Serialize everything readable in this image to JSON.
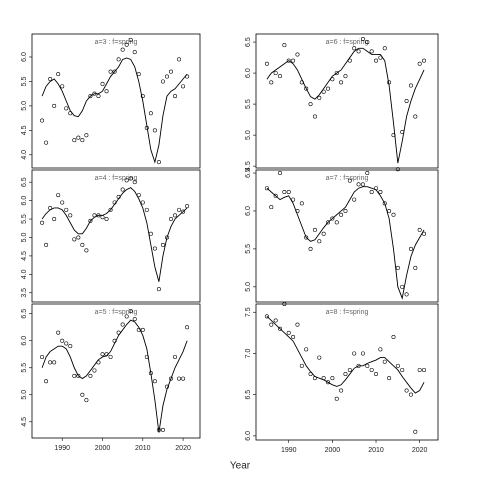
{
  "x_label": "Year",
  "chart_data": [
    {
      "type": "scatter",
      "title": "a=3 : f=spring",
      "x": [
        1985,
        1986,
        1987,
        1988,
        1989,
        1990,
        1991,
        1992,
        1993,
        1994,
        1995,
        1996,
        1997,
        1998,
        1999,
        2000,
        2001,
        2002,
        2003,
        2004,
        2005,
        2006,
        2007,
        2008,
        2009,
        2010,
        2011,
        2012,
        2013,
        2014,
        2015,
        2016,
        2017,
        2018,
        2019,
        2020,
        2021
      ],
      "values": [
        4.7,
        4.25,
        5.55,
        5.0,
        5.65,
        5.4,
        4.95,
        4.85,
        4.3,
        4.35,
        4.3,
        4.4,
        5.2,
        5.25,
        5.2,
        5.45,
        5.3,
        5.7,
        5.7,
        5.95,
        6.15,
        6.25,
        6.35,
        6.1,
        5.65,
        5.2,
        4.55,
        4.85,
        4.5,
        3.85,
        5.5,
        5.6,
        5.7,
        5.2,
        5.95,
        5.4,
        5.6
      ],
      "line_values": [
        5.2,
        5.4,
        5.5,
        5.55,
        5.45,
        5.3,
        5.1,
        4.9,
        4.8,
        4.78,
        4.9,
        5.1,
        5.2,
        5.25,
        5.25,
        5.3,
        5.45,
        5.6,
        5.7,
        5.8,
        5.95,
        5.98,
        5.95,
        5.8,
        5.5,
        5.1,
        4.6,
        4.1,
        3.85,
        4.2,
        4.8,
        5.2,
        5.3,
        5.35,
        5.45,
        5.55,
        5.65
      ],
      "color": "#000000",
      "xlim": [
        1982.5,
        2024.2
      ],
      "ylim": [
        3.73,
        6.47
      ],
      "yticks": [
        {
          "value": 4,
          "label": "4.0"
        },
        4.5,
        {
          "value": 5,
          "label": "5.0"
        },
        5.5,
        {
          "value": 6,
          "label": "6.0"
        }
      ]
    },
    {
      "type": "scatter",
      "title": "a=4 : f=spring",
      "x": [
        1985,
        1986,
        1987,
        1988,
        1989,
        1990,
        1991,
        1992,
        1993,
        1994,
        1995,
        1996,
        1997,
        1998,
        1999,
        2000,
        2001,
        2002,
        2003,
        2004,
        2005,
        2006,
        2007,
        2008,
        2009,
        2010,
        2011,
        2012,
        2013,
        2014,
        2015,
        2016,
        2017,
        2018,
        2019,
        2020,
        2021
      ],
      "values": [
        5.4,
        4.8,
        5.8,
        5.5,
        6.15,
        5.95,
        5.75,
        5.6,
        4.95,
        5.0,
        4.8,
        4.65,
        5.45,
        5.6,
        5.6,
        5.55,
        5.5,
        5.75,
        5.95,
        6.1,
        6.3,
        6.55,
        6.6,
        6.5,
        6.15,
        5.95,
        5.75,
        5.1,
        4.7,
        3.6,
        4.8,
        5.0,
        5.5,
        5.6,
        5.75,
        5.7,
        5.85
      ],
      "line_values": [
        5.5,
        5.65,
        5.75,
        5.8,
        5.8,
        5.75,
        5.6,
        5.4,
        5.2,
        5.1,
        5.1,
        5.25,
        5.45,
        5.55,
        5.6,
        5.6,
        5.65,
        5.75,
        5.9,
        6.05,
        6.2,
        6.3,
        6.35,
        6.25,
        6.05,
        5.8,
        5.4,
        4.8,
        4.2,
        3.8,
        4.5,
        5.0,
        5.3,
        5.5,
        5.6,
        5.7,
        5.8
      ],
      "color": "#000000",
      "xlim": [
        1982.5,
        2024.2
      ],
      "ylim": [
        3.25,
        6.83
      ],
      "yticks": [
        3.5,
        {
          "value": 4,
          "label": "4.0"
        },
        4.5,
        {
          "value": 5,
          "label": "5.0"
        },
        5.5,
        {
          "value": 6,
          "label": "6.0"
        },
        6.5
      ]
    },
    {
      "type": "scatter",
      "title": "a=5 : f=spring",
      "x": [
        1985,
        1986,
        1987,
        1988,
        1989,
        1990,
        1991,
        1992,
        1993,
        1994,
        1995,
        1996,
        1997,
        1998,
        1999,
        2000,
        2001,
        2002,
        2003,
        2004,
        2005,
        2006,
        2007,
        2008,
        2009,
        2010,
        2011,
        2012,
        2013,
        2014,
        2015,
        2016,
        2017,
        2018,
        2019,
        2020,
        2021
      ],
      "values": [
        5.7,
        5.25,
        5.6,
        5.6,
        6.15,
        6.0,
        5.95,
        5.9,
        5.35,
        5.35,
        5.0,
        4.9,
        5.35,
        5.45,
        5.6,
        5.75,
        5.75,
        5.7,
        6.0,
        6.15,
        6.3,
        6.45,
        6.55,
        6.4,
        6.2,
        6.2,
        5.7,
        5.4,
        5.25,
        4.35,
        4.35,
        5.15,
        5.3,
        5.7,
        5.3,
        5.3,
        6.25
      ],
      "line_values": [
        5.5,
        5.7,
        5.8,
        5.85,
        5.9,
        5.9,
        5.85,
        5.7,
        5.5,
        5.35,
        5.3,
        5.35,
        5.45,
        5.55,
        5.65,
        5.7,
        5.72,
        5.8,
        5.95,
        6.1,
        6.2,
        6.3,
        6.38,
        6.35,
        6.25,
        6.1,
        5.85,
        5.4,
        4.9,
        4.3,
        4.8,
        5.1,
        5.3,
        5.5,
        5.65,
        5.8,
        6.0
      ],
      "color": "#000000",
      "xlim": [
        1982.5,
        2024.2
      ],
      "ylim": [
        4.2,
        6.68
      ],
      "xticks": [
        1990,
        2000,
        2010,
        2020
      ],
      "yticks": [
        4.5,
        {
          "value": 5,
          "label": "5.0"
        },
        5.5,
        {
          "value": 6,
          "label": "6.0"
        },
        6.5
      ]
    },
    {
      "type": "scatter",
      "title": "a=6 : f=spring",
      "x": [
        1985,
        1986,
        1987,
        1988,
        1989,
        1990,
        1991,
        1992,
        1993,
        1994,
        1995,
        1996,
        1997,
        1998,
        1999,
        2000,
        2001,
        2002,
        2003,
        2004,
        2005,
        2006,
        2007,
        2008,
        2009,
        2010,
        2011,
        2012,
        2013,
        2014,
        2015,
        2016,
        2017,
        2018,
        2019,
        2020,
        2021
      ],
      "values": [
        6.15,
        5.85,
        6.0,
        5.95,
        6.45,
        6.2,
        6.2,
        6.3,
        5.85,
        5.75,
        5.5,
        5.3,
        5.6,
        5.7,
        5.75,
        5.9,
        6.0,
        5.85,
        5.95,
        6.2,
        6.4,
        6.35,
        6.55,
        6.5,
        6.35,
        6.2,
        6.25,
        6.4,
        5.85,
        5.0,
        4.45,
        5.05,
        5.55,
        5.8,
        5.3,
        6.15,
        6.2
      ],
      "line_values": [
        5.9,
        6.0,
        6.05,
        6.1,
        6.15,
        6.2,
        6.15,
        6.05,
        5.9,
        5.75,
        5.62,
        5.58,
        5.65,
        5.75,
        5.85,
        5.95,
        6.0,
        6.05,
        6.15,
        6.25,
        6.35,
        6.4,
        6.4,
        6.35,
        6.3,
        6.3,
        6.3,
        6.2,
        5.8,
        5.2,
        4.55,
        4.9,
        5.3,
        5.55,
        5.75,
        5.9,
        6.05
      ],
      "color": "#000000",
      "xlim": [
        1982.5,
        2024.2
      ],
      "ylim": [
        4.47,
        6.63
      ],
      "yticks": [
        4.5,
        {
          "value": 5,
          "label": "5.0"
        },
        5.5,
        {
          "value": 6,
          "label": "6.0"
        },
        6.5
      ]
    },
    {
      "type": "scatter",
      "title": "a=7 : f=spring",
      "x": [
        1985,
        1986,
        1987,
        1988,
        1989,
        1990,
        1991,
        1992,
        1993,
        1994,
        1995,
        1996,
        1997,
        1998,
        1999,
        2000,
        2001,
        2002,
        2003,
        2004,
        2005,
        2006,
        2007,
        2008,
        2009,
        2010,
        2011,
        2012,
        2013,
        2014,
        2015,
        2016,
        2017,
        2018,
        2019,
        2020,
        2021
      ],
      "values": [
        6.3,
        6.05,
        6.2,
        6.5,
        6.25,
        6.25,
        6.15,
        6.0,
        6.1,
        5.65,
        5.5,
        5.75,
        5.6,
        5.7,
        5.85,
        5.9,
        5.85,
        5.95,
        6.0,
        6.4,
        6.15,
        6.35,
        6.35,
        6.5,
        6.25,
        6.3,
        6.25,
        6.1,
        6.0,
        5.95,
        5.25,
        5.0,
        4.9,
        5.5,
        5.25,
        5.75,
        5.7
      ],
      "line_values": [
        6.3,
        6.25,
        6.2,
        6.15,
        6.18,
        6.2,
        6.1,
        5.95,
        5.8,
        5.65,
        5.6,
        5.62,
        5.7,
        5.78,
        5.85,
        5.9,
        5.95,
        6.0,
        6.05,
        6.15,
        6.25,
        6.3,
        6.32,
        6.32,
        6.3,
        6.28,
        6.2,
        6.1,
        5.9,
        5.5,
        5.0,
        4.85,
        5.15,
        5.4,
        5.55,
        5.65,
        5.75
      ],
      "color": "#000000",
      "xlim": [
        1982.5,
        2024.2
      ],
      "ylim": [
        4.8,
        6.54
      ],
      "yticks": [
        {
          "value": 5,
          "label": "5.0"
        },
        5.5,
        {
          "value": 6,
          "label": "6.0"
        },
        6.5
      ]
    },
    {
      "type": "scatter",
      "title": "a=8 : f=spring",
      "x": [
        1985,
        1986,
        1987,
        1988,
        1989,
        1990,
        1991,
        1992,
        1993,
        1994,
        1995,
        1996,
        1997,
        1998,
        1999,
        2000,
        2001,
        2002,
        2003,
        2004,
        2005,
        2006,
        2007,
        2008,
        2009,
        2010,
        2011,
        2012,
        2013,
        2014,
        2015,
        2016,
        2017,
        2018,
        2019,
        2020,
        2021
      ],
      "values": [
        7.45,
        7.35,
        7.4,
        7.3,
        7.6,
        7.25,
        7.2,
        7.35,
        6.85,
        7.05,
        6.75,
        6.7,
        6.95,
        6.7,
        6.65,
        6.7,
        6.45,
        6.55,
        6.75,
        6.8,
        7.0,
        6.85,
        7.0,
        6.85,
        6.8,
        6.75,
        7.05,
        6.9,
        6.7,
        7.2,
        6.85,
        6.8,
        6.55,
        6.5,
        6.05,
        6.8,
        6.8
      ],
      "line_values": [
        7.45,
        7.4,
        7.35,
        7.3,
        7.25,
        7.2,
        7.15,
        7.05,
        6.95,
        6.85,
        6.78,
        6.72,
        6.7,
        6.68,
        6.65,
        6.62,
        6.6,
        6.62,
        6.68,
        6.75,
        6.82,
        6.85,
        6.85,
        6.88,
        6.9,
        6.92,
        6.95,
        6.95,
        6.9,
        6.85,
        6.8,
        6.72,
        6.65,
        6.58,
        6.52,
        6.55,
        6.65
      ],
      "color": "#000000",
      "xlim": [
        1982.5,
        2024.2
      ],
      "ylim": [
        5.95,
        7.6
      ],
      "xticks": [
        1990,
        2000,
        2010,
        2020
      ],
      "yticks": [
        {
          "value": 6,
          "label": "6.0"
        },
        6.5,
        {
          "value": 7,
          "label": "7.0"
        },
        7.5
      ]
    }
  ]
}
